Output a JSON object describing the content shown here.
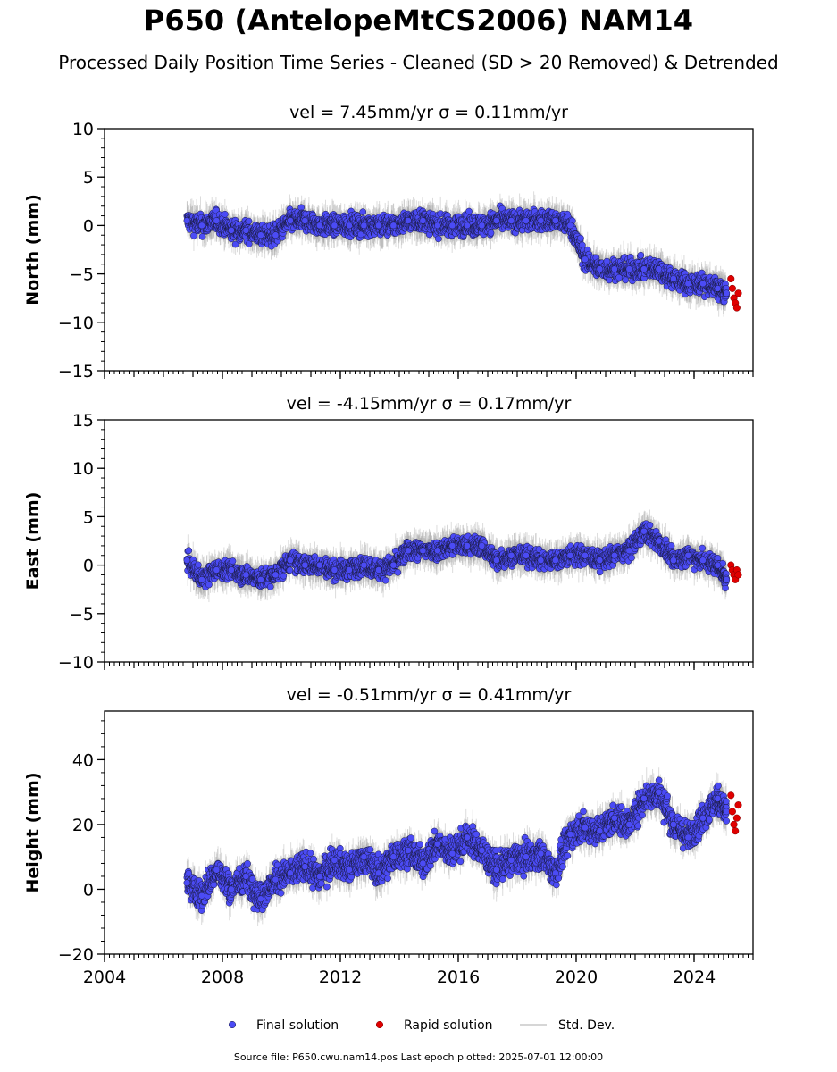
{
  "figure": {
    "title": "P650 (AntelopeMtCS2006) NAM14",
    "subtitle": "Processed Daily Position Time Series - Cleaned (SD > 20 Removed) & Detrended",
    "source_note": "Source file: P650.cwu.nam14.pos  Last epoch plotted: 2025-07-01 12:00:00"
  },
  "colors": {
    "final": "#4b4bf5",
    "final_edge": "#1a1a40",
    "rapid": "#e00000",
    "stddev": "#c8c8c8"
  },
  "legend": {
    "placement": "bottom-center",
    "entries": [
      "Final solution",
      "Rapid solution",
      "Std. Dev."
    ]
  },
  "chart_data": [
    {
      "type": "scatter",
      "title": "vel = 7.45mm/yr   σ = 0.11mm/yr",
      "ylabel": "North (mm)",
      "xlim": [
        2004,
        2026
      ],
      "ylim": [
        -15,
        10
      ],
      "yticks": [
        -15,
        -10,
        -5,
        0,
        5,
        10
      ],
      "xticks": [
        2004,
        2008,
        2012,
        2016,
        2020,
        2024
      ],
      "show_xticklabels": false,
      "grid": false,
      "series": [
        {
          "name": "Final solution",
          "x": [
            2006.8,
            2007.3,
            2007.8,
            2008.3,
            2008.8,
            2009.3,
            2009.8,
            2010.3,
            2010.8,
            2011.3,
            2011.8,
            2012.3,
            2012.8,
            2013.3,
            2013.8,
            2014.3,
            2014.8,
            2015.3,
            2015.8,
            2016.3,
            2016.8,
            2017.3,
            2017.8,
            2018.3,
            2018.8,
            2019.3,
            2019.8,
            2020.3,
            2020.8,
            2021.3,
            2021.8,
            2022.3,
            2022.8,
            2023.3,
            2023.8,
            2024.3,
            2024.8,
            2025.1
          ],
          "y": [
            0.5,
            0.0,
            0.5,
            -0.5,
            -0.5,
            -1.0,
            -1.0,
            0.5,
            0.5,
            0.0,
            0.0,
            0.0,
            0.0,
            0.0,
            0.0,
            0.5,
            0.5,
            0.0,
            0.0,
            0.0,
            0.0,
            0.5,
            0.5,
            0.5,
            0.5,
            0.5,
            0.0,
            -3.5,
            -4.5,
            -4.5,
            -4.5,
            -4.5,
            -4.5,
            -5.5,
            -6.0,
            -6.0,
            -6.5,
            -7.0
          ]
        },
        {
          "name": "Rapid solution",
          "x": [
            2025.25,
            2025.3,
            2025.35,
            2025.4,
            2025.45,
            2025.5
          ],
          "y": [
            -5.5,
            -6.5,
            -7.5,
            -8.0,
            -8.5,
            -7.0
          ]
        }
      ]
    },
    {
      "type": "scatter",
      "title": "vel = -4.15mm/yr   σ = 0.17mm/yr",
      "ylabel": "East (mm)",
      "xlim": [
        2004,
        2026
      ],
      "ylim": [
        -10,
        15
      ],
      "yticks": [
        -10,
        -5,
        0,
        5,
        10,
        15
      ],
      "xticks": [
        2004,
        2008,
        2012,
        2016,
        2020,
        2024
      ],
      "show_xticklabels": false,
      "grid": false,
      "series": [
        {
          "name": "Final solution",
          "x": [
            2006.8,
            2007.3,
            2007.8,
            2008.3,
            2008.8,
            2009.3,
            2009.8,
            2010.3,
            2010.8,
            2011.3,
            2011.8,
            2012.3,
            2012.8,
            2013.3,
            2013.8,
            2014.3,
            2014.8,
            2015.3,
            2015.8,
            2016.3,
            2016.8,
            2017.3,
            2017.8,
            2018.3,
            2018.8,
            2019.3,
            2019.8,
            2020.3,
            2020.8,
            2021.3,
            2021.8,
            2022.3,
            2022.8,
            2023.3,
            2023.8,
            2024.3,
            2024.8,
            2025.1
          ],
          "y": [
            0.5,
            -1.5,
            -0.5,
            -0.5,
            -1.0,
            -1.5,
            -1.0,
            0.5,
            0.0,
            0.0,
            -0.5,
            -0.5,
            0.0,
            -0.5,
            0.0,
            1.5,
            1.5,
            1.5,
            2.0,
            2.0,
            2.0,
            0.5,
            1.0,
            1.0,
            0.5,
            0.5,
            1.0,
            1.0,
            0.5,
            1.0,
            1.5,
            3.5,
            2.5,
            0.5,
            1.0,
            0.5,
            0.0,
            -1.5
          ]
        },
        {
          "name": "Rapid solution",
          "x": [
            2025.25,
            2025.3,
            2025.35,
            2025.4,
            2025.45,
            2025.5
          ],
          "y": [
            0.0,
            -0.5,
            -1.0,
            -1.5,
            -0.5,
            -1.0
          ]
        }
      ]
    },
    {
      "type": "scatter",
      "title": "vel = -0.51mm/yr   σ = 0.41mm/yr",
      "ylabel": "Height (mm)",
      "xlim": [
        2004,
        2026
      ],
      "ylim": [
        -20,
        55
      ],
      "yticks": [
        -20,
        0,
        20,
        40
      ],
      "xticks": [
        2004,
        2008,
        2012,
        2016,
        2020,
        2024
      ],
      "xticklabels": [
        "2004",
        "2008",
        "2012",
        "2016",
        "2020",
        "2024"
      ],
      "show_xticklabels": true,
      "grid": false,
      "series": [
        {
          "name": "Final solution",
          "x": [
            2006.8,
            2007.3,
            2007.8,
            2008.3,
            2008.8,
            2009.3,
            2009.8,
            2010.3,
            2010.8,
            2011.3,
            2011.8,
            2012.3,
            2012.8,
            2013.3,
            2013.8,
            2014.3,
            2014.8,
            2015.3,
            2015.8,
            2016.3,
            2016.8,
            2017.3,
            2017.8,
            2018.3,
            2018.8,
            2019.3,
            2019.8,
            2020.3,
            2020.8,
            2021.3,
            2021.8,
            2022.3,
            2022.8,
            2023.3,
            2023.8,
            2024.3,
            2024.8,
            2025.1
          ],
          "y": [
            2,
            -2,
            6,
            0,
            4,
            -3,
            3,
            5,
            7,
            4,
            9,
            6,
            10,
            5,
            10,
            12,
            8,
            14,
            11,
            16,
            12,
            6,
            9,
            10,
            11,
            5,
            17,
            19,
            18,
            22,
            20,
            28,
            30,
            20,
            16,
            22,
            28,
            24
          ]
        },
        {
          "name": "Rapid solution",
          "x": [
            2025.25,
            2025.3,
            2025.35,
            2025.4,
            2025.45,
            2025.5
          ],
          "y": [
            29,
            24,
            20,
            18,
            22,
            26
          ]
        }
      ]
    }
  ]
}
